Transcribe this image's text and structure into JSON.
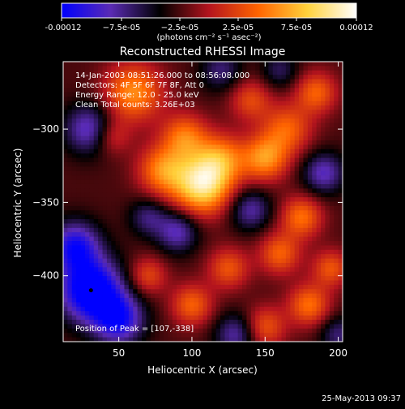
{
  "colorbar": {
    "ticks": [
      "-0.00012",
      "−7.5e-05",
      "−2.5e-05",
      "2.5e-05",
      "7.5e-05",
      "0.00012"
    ],
    "unit": "(photons cm⁻² s⁻¹ asec⁻²)",
    "range": [
      -0.00012,
      0.00012
    ],
    "colors": [
      "#0000ff",
      "#5a2bb4",
      "#000000",
      "#b4141e",
      "#ff6400",
      "#ffd23c",
      "#ffffff"
    ]
  },
  "chart_data": {
    "type": "heatmap",
    "title": "Reconstructed RHESSI Image",
    "xlabel": "Heliocentric X (arcsec)",
    "ylabel": "Heliocentric Y (arcsec)",
    "xlim": [
      12,
      203
    ],
    "ylim": [
      -445,
      -254
    ],
    "xticks": [
      50,
      100,
      150,
      200
    ],
    "yticks": [
      -300,
      -350,
      -400
    ],
    "annotations": [
      "14-Jan-2003 08:51:26.000 to 08:56:08.000",
      "Detectors: 4F 5F 6F 7F 8F, Att 0",
      "Energy Range: 12.0 - 25.0 keV",
      "Clean     Total counts: 3.26E+03"
    ],
    "peak_label": "Position of Peak = [107,-338]",
    "peak": [
      107,
      -338
    ],
    "min_marker": [
      31,
      -410
    ],
    "sources": [
      {
        "x": 107,
        "y": -338,
        "amp": 1.0,
        "w": 14
      },
      {
        "x": 120,
        "y": -320,
        "amp": 0.55,
        "w": 12
      },
      {
        "x": 80,
        "y": -328,
        "amp": 0.6,
        "w": 12
      },
      {
        "x": 60,
        "y": -275,
        "amp": 0.65,
        "w": 14
      },
      {
        "x": 95,
        "y": -305,
        "amp": 0.55,
        "w": 11
      },
      {
        "x": 150,
        "y": -320,
        "amp": 0.65,
        "w": 11
      },
      {
        "x": 165,
        "y": -300,
        "amp": 0.5,
        "w": 12
      },
      {
        "x": 185,
        "y": -275,
        "amp": 0.5,
        "w": 10
      },
      {
        "x": 175,
        "y": -360,
        "amp": 0.55,
        "w": 10
      },
      {
        "x": 140,
        "y": -280,
        "amp": 0.4,
        "w": 10
      },
      {
        "x": 160,
        "y": -385,
        "amp": 0.5,
        "w": 10
      },
      {
        "x": 125,
        "y": -395,
        "amp": 0.45,
        "w": 10
      },
      {
        "x": 100,
        "y": -420,
        "amp": 0.5,
        "w": 10
      },
      {
        "x": 70,
        "y": -400,
        "amp": 0.4,
        "w": 9
      },
      {
        "x": 180,
        "y": -420,
        "amp": 0.55,
        "w": 10
      },
      {
        "x": 150,
        "y": -435,
        "amp": 0.45,
        "w": 10
      },
      {
        "x": 195,
        "y": -395,
        "amp": 0.45,
        "w": 9
      },
      {
        "x": 45,
        "y": -305,
        "amp": 0.35,
        "w": 9
      },
      {
        "x": 31,
        "y": -410,
        "amp": -1.0,
        "w": 15
      },
      {
        "x": 20,
        "y": -380,
        "amp": -0.7,
        "w": 12
      },
      {
        "x": 50,
        "y": -430,
        "amp": -0.7,
        "w": 12
      },
      {
        "x": 30,
        "y": -300,
        "amp": -0.55,
        "w": 12
      },
      {
        "x": 90,
        "y": -370,
        "amp": -0.5,
        "w": 10
      },
      {
        "x": 140,
        "y": -355,
        "amp": -0.45,
        "w": 10
      },
      {
        "x": 190,
        "y": -330,
        "amp": -0.5,
        "w": 10
      },
      {
        "x": 130,
        "y": -440,
        "amp": -0.45,
        "w": 10
      },
      {
        "x": 200,
        "y": -440,
        "amp": -0.35,
        "w": 9
      },
      {
        "x": 120,
        "y": -260,
        "amp": -0.35,
        "w": 10
      },
      {
        "x": 70,
        "y": -360,
        "amp": -0.35,
        "w": 9
      },
      {
        "x": 160,
        "y": -260,
        "amp": -0.3,
        "w": 9
      }
    ]
  },
  "footer": {
    "timestamp": "25-May-2013 09:37"
  }
}
